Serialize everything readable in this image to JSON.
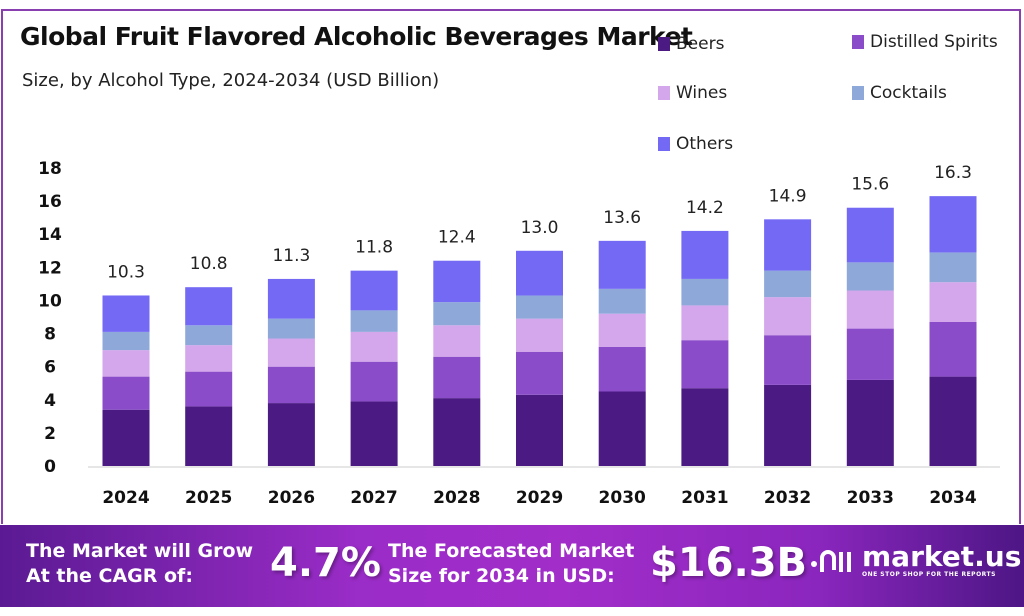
{
  "chart_data": {
    "type": "bar",
    "stacked": true,
    "title": "Global Fruit Flavored Alcoholic Beverages Market",
    "subtitle": "Size, by  Alcohol Type, 2024-2034 (USD Billion)",
    "xlabel": "",
    "ylabel": "",
    "ylim": [
      0,
      18
    ],
    "yticks": [
      "0",
      "2",
      "4",
      "6",
      "8",
      "10",
      "12",
      "14",
      "16",
      "18"
    ],
    "grid": false,
    "legend_position": "top-right",
    "categories": [
      "2024",
      "2025",
      "2026",
      "2027",
      "2028",
      "2029",
      "2030",
      "2031",
      "2032",
      "2033",
      "2034"
    ],
    "totals": [
      "10.3",
      "10.8",
      "11.3",
      "11.8",
      "12.4",
      "13.0",
      "13.6",
      "14.2",
      "14.9",
      "15.6",
      "16.3"
    ],
    "series": [
      {
        "name": "Beers",
        "color": "#4b1a82",
        "values": [
          3.4,
          3.6,
          3.8,
          3.9,
          4.1,
          4.3,
          4.5,
          4.7,
          4.9,
          5.2,
          5.4
        ]
      },
      {
        "name": "Distilled Spirits",
        "color": "#8a4cc9",
        "values": [
          2.0,
          2.1,
          2.2,
          2.4,
          2.5,
          2.6,
          2.7,
          2.9,
          3.0,
          3.1,
          3.3
        ]
      },
      {
        "name": "Wines",
        "color": "#d4a6ec",
        "values": [
          1.6,
          1.6,
          1.7,
          1.8,
          1.9,
          2.0,
          2.0,
          2.1,
          2.3,
          2.3,
          2.4
        ]
      },
      {
        "name": "Cocktails",
        "color": "#8fa8da",
        "values": [
          1.1,
          1.2,
          1.2,
          1.3,
          1.4,
          1.4,
          1.5,
          1.6,
          1.6,
          1.7,
          1.8
        ]
      },
      {
        "name": "Others",
        "color": "#7369f5",
        "values": [
          2.2,
          2.3,
          2.4,
          2.4,
          2.5,
          2.7,
          2.9,
          2.9,
          3.1,
          3.3,
          3.4
        ]
      }
    ]
  },
  "footer": {
    "cagr_label_1": "The Market will Grow",
    "cagr_label_2": "At the CAGR of:",
    "cagr_value": "4.7%",
    "forecast_label_1": "The Forecasted Market",
    "forecast_label_2": "Size for 2034 in USD:",
    "forecast_value": "$16.3B",
    "brand": "market.us",
    "brand_tagline": "ONE STOP SHOP FOR THE REPORTS"
  }
}
